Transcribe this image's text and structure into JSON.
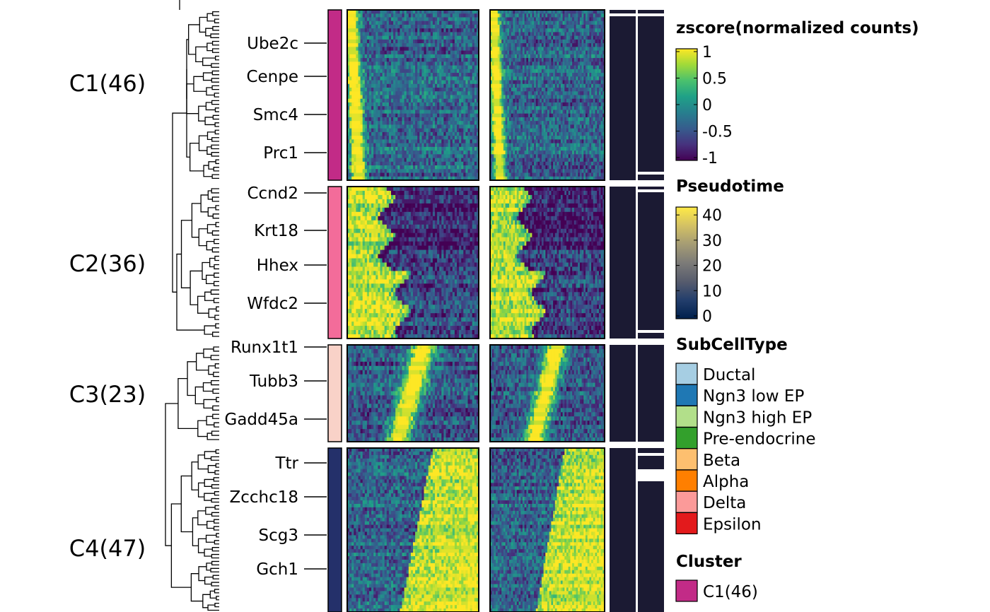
{
  "chart_data": {
    "type": "heatmap",
    "title": "",
    "clusters": [
      {
        "label": "C1(46)",
        "n": 46,
        "color": "#c22b87",
        "genes": [
          "Ube2c",
          "Cenpe",
          "Smc4",
          "Prc1"
        ],
        "pattern": "early"
      },
      {
        "label": "C2(36)",
        "n": 36,
        "color": "#f36c9a",
        "genes": [
          "Ccnd2",
          "Krt18",
          "Hhex",
          "Wfdc2"
        ],
        "pattern": "early-mid"
      },
      {
        "label": "C3(23)",
        "n": 23,
        "color": "#f9d2c8",
        "genes": [
          "Runx1t1",
          "Tubb3",
          "Gadd45a"
        ],
        "pattern": "mid"
      },
      {
        "label": "C4(47)",
        "n": 47,
        "color": "#24306a",
        "genes": [
          "Ttr",
          "Zcchc18",
          "Scg3",
          "Gch1"
        ],
        "pattern": "late"
      }
    ],
    "legends": [
      {
        "title": "zscore(normalized counts)",
        "type": "continuous",
        "palette": "viridis",
        "ticks": [
          "1",
          "0.5",
          "0",
          "-0.5",
          "-1"
        ],
        "range": [
          -1,
          1
        ]
      },
      {
        "title": "Pseudotime",
        "type": "continuous",
        "palette": "cividis",
        "ticks": [
          "40",
          "30",
          "20",
          "10",
          "0"
        ],
        "range": [
          0,
          42
        ]
      },
      {
        "title": "SubCellType",
        "type": "categorical",
        "items": [
          {
            "label": "Ductal",
            "color": "#a6cee3"
          },
          {
            "label": "Ngn3 low EP",
            "color": "#1f78b4"
          },
          {
            "label": "Ngn3 high EP",
            "color": "#b2df8a"
          },
          {
            "label": "Pre-endocrine",
            "color": "#33a02c"
          },
          {
            "label": "Beta",
            "color": "#fdbf6f"
          },
          {
            "label": "Alpha",
            "color": "#ff7f00"
          },
          {
            "label": "Delta",
            "color": "#fb9a99"
          },
          {
            "label": "Epsilon",
            "color": "#e31a1c"
          }
        ]
      },
      {
        "title": "Cluster",
        "type": "categorical",
        "items": [
          {
            "label": "C1(46)",
            "color": "#c22b87"
          }
        ]
      }
    ],
    "side_annotation_color": "#1b1a33",
    "grid": false
  }
}
